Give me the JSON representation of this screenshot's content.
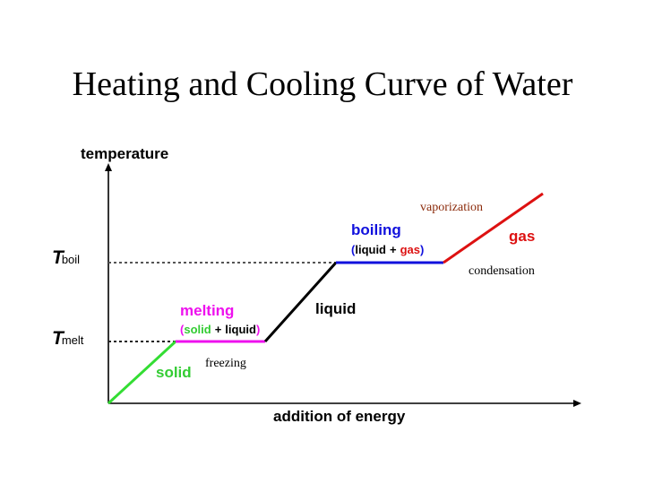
{
  "title": "Heating and Cooling Curve of Water",
  "axes": {
    "y_label": "temperature",
    "x_label": "addition of energy",
    "t_boil_symbol": "T",
    "t_boil_sub": "boil",
    "t_melt_symbol": "T",
    "t_melt_sub": "melt"
  },
  "phases": {
    "solid": "solid",
    "melting": "melting",
    "melting_paren_open": "(",
    "melting_solid": "solid",
    "melting_plus": "+",
    "melting_liquid": "liquid",
    "melting_paren_close": ")",
    "liquid": "liquid",
    "boiling": "boiling",
    "boiling_paren_open": "(",
    "boiling_liquid": "liquid",
    "boiling_plus": "+",
    "boiling_gas": "gas",
    "boiling_paren_close": ")",
    "gas": "gas"
  },
  "annotations": {
    "vaporization": "vaporization",
    "condensation": "condensation",
    "freezing": "freezing"
  },
  "colors": {
    "solid": "#33dd33",
    "melting": "#ee11ee",
    "liquid": "#000000",
    "boiling": "#1111dd",
    "gas": "#dd1111",
    "axis": "#000000",
    "dashed": "#555555",
    "annotation": "#8b2a0a"
  },
  "chart_data": {
    "type": "line",
    "title": "Heating and Cooling Curve of Water",
    "xlabel": "addition of energy",
    "ylabel": "temperature",
    "y_reference_levels": [
      "T_melt",
      "T_boil"
    ],
    "segments": [
      {
        "phase": "solid",
        "from": "start",
        "to": "T_melt",
        "kind": "rising"
      },
      {
        "phase": "melting (solid + liquid)",
        "level": "T_melt",
        "kind": "plateau"
      },
      {
        "phase": "liquid",
        "from": "T_melt",
        "to": "T_boil",
        "kind": "rising"
      },
      {
        "phase": "boiling (liquid + gas)",
        "level": "T_boil",
        "kind": "plateau"
      },
      {
        "phase": "gas",
        "from": "T_boil",
        "to": "end",
        "kind": "rising"
      }
    ]
  }
}
